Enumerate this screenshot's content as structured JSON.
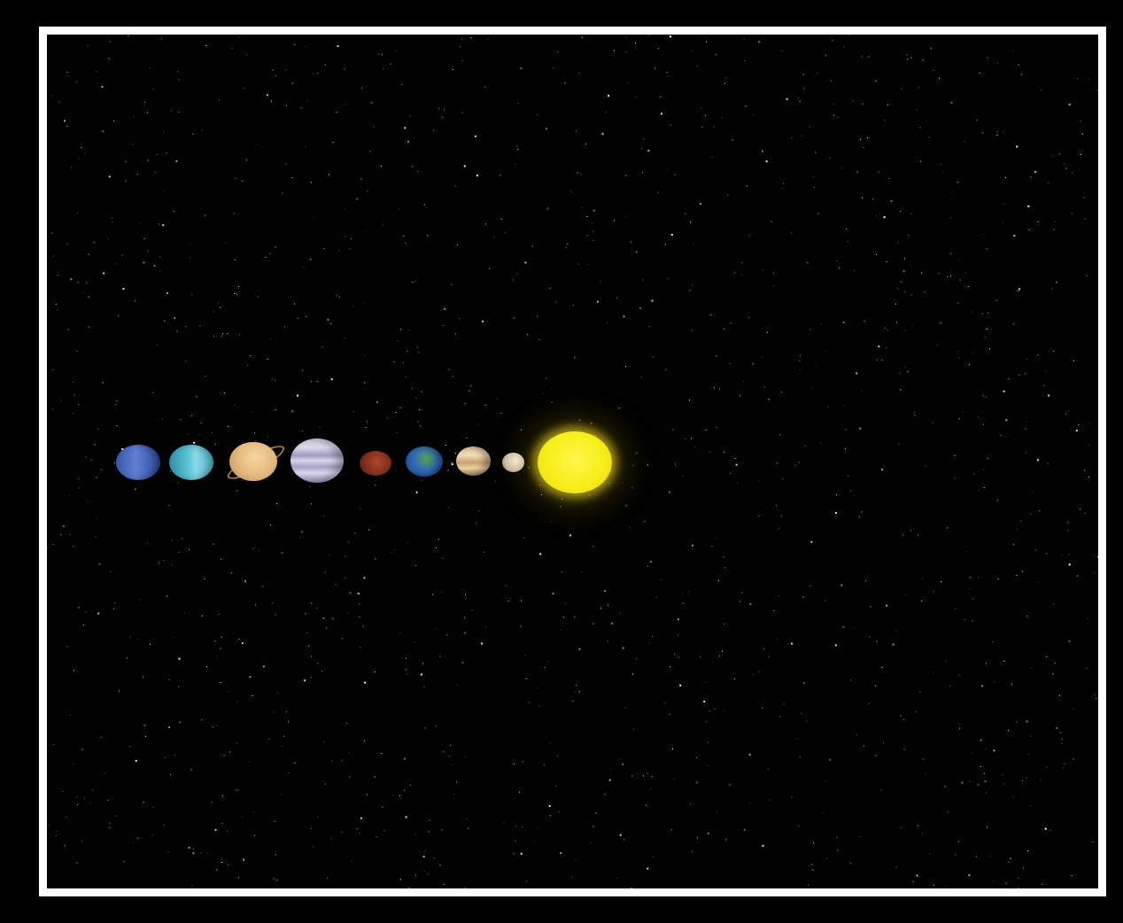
{
  "scene": {
    "background_color": "#000000",
    "frame_color": "#ffffff",
    "star_color": "#ffffff",
    "bodies": [
      {
        "id": "sun",
        "color": "#f7ee1a"
      },
      {
        "id": "mercury",
        "color": "#c9b89a"
      },
      {
        "id": "venus",
        "color": "#e8c89c"
      },
      {
        "id": "earth",
        "color": "#2f6bb7"
      },
      {
        "id": "mars",
        "color": "#7b2d1a"
      },
      {
        "id": "jupiter",
        "color": "#cfcbe6"
      },
      {
        "id": "saturn",
        "color": "#e2b67a"
      },
      {
        "id": "uranus",
        "color": "#5fc6d8"
      },
      {
        "id": "neptune",
        "color": "#4a67bd"
      }
    ]
  }
}
